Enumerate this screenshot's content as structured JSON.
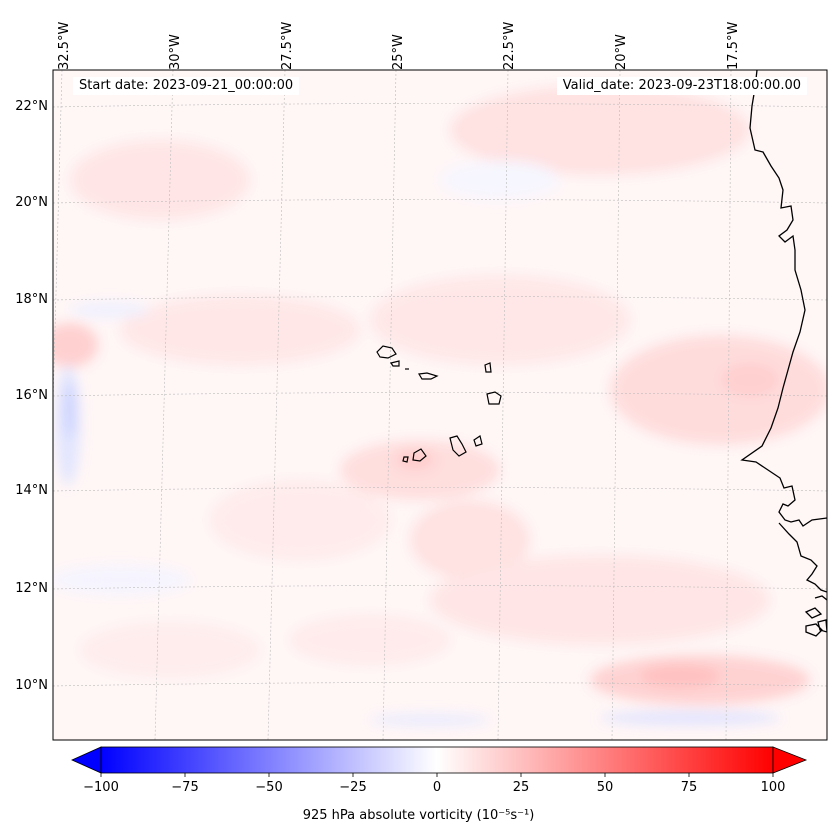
{
  "map": {
    "start_date": "Start date: 2023-09-21_00:00:00",
    "valid_date": "Valid_date: 2023-09-23T18:00:00.00",
    "longitude_labels": [
      "32.5°W",
      "30°W",
      "27.5°W",
      "25°W",
      "22.5°W",
      "20°W",
      "17.5°W"
    ],
    "latitude_labels": [
      "22°N",
      "20°N",
      "18°N",
      "16°N",
      "14°N",
      "12°N",
      "10°N"
    ],
    "colorbar": {
      "ticks": [
        "−100",
        "−75",
        "−50",
        "−25",
        "0",
        "25",
        "50",
        "75",
        "100"
      ],
      "tick_values": [
        -100,
        -75,
        -50,
        -25,
        0,
        25,
        50,
        75,
        100
      ],
      "vmin": -100,
      "vmax": 100,
      "label": "925 hPa absolute vorticity (10⁻⁵s⁻¹)"
    },
    "colors": {
      "negative_end": "#0000ff",
      "zero": "#ffffff",
      "positive_end": "#ff0000",
      "coastline": "#000000",
      "gridline": "#bbbbbb"
    }
  }
}
